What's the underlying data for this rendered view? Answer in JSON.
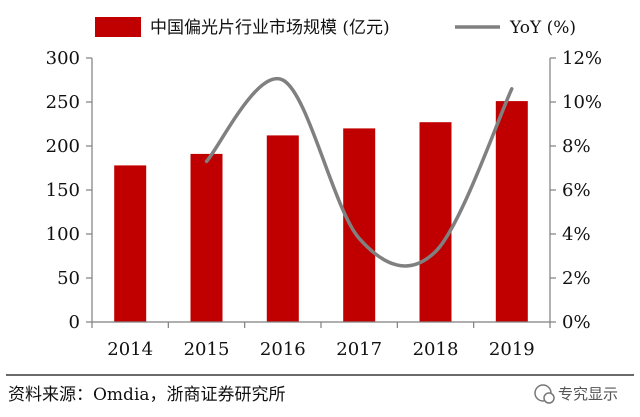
{
  "chart_data": {
    "type": "bar",
    "categories": [
      "2014",
      "2015",
      "2016",
      "2017",
      "2018",
      "2019"
    ],
    "series": [
      {
        "name": "中国偏光片行业市场规模 (亿元)",
        "type": "bar",
        "axis": "left",
        "color": "#c00000",
        "values": [
          178,
          191,
          212,
          220,
          227,
          251
        ]
      },
      {
        "name": "YoY (%)",
        "type": "line",
        "axis": "right",
        "color": "#808080",
        "values": [
          null,
          7.3,
          11.0,
          3.8,
          3.2,
          10.6
        ]
      }
    ],
    "y_left": {
      "range": [
        0,
        300
      ],
      "ticks": [
        "0",
        "50",
        "100",
        "150",
        "200",
        "250",
        "300"
      ]
    },
    "y_right": {
      "range": [
        0,
        12
      ],
      "ticks": [
        "0%",
        "2%",
        "4%",
        "6%",
        "8%",
        "10%",
        "12%"
      ]
    },
    "legend_position": "top",
    "grid": false
  },
  "source_note": "资料来源：Omdia，浙商证券研究所",
  "watermark": "专究显示"
}
